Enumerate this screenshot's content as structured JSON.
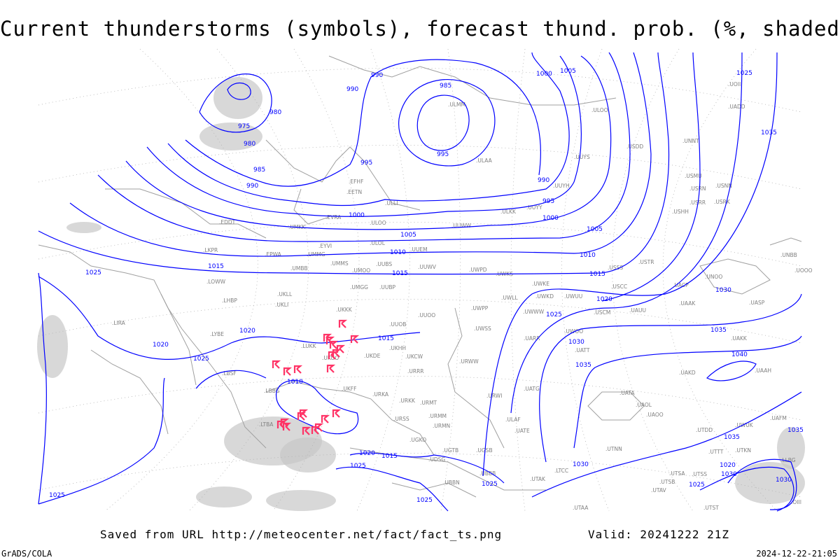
{
  "title": "Current thunderstorms (symbols), forecast thund. prob. (%, shaded)",
  "footer": {
    "saved": "Saved from URL http://meteocenter.net/fact/fact_ts.png",
    "valid": "Valid: 20241222 21Z",
    "software": "GrADS/COLA",
    "timestamp": "2024-12-22-21:05"
  },
  "colors": {
    "isobar": "#0000ff",
    "thunderstorm_symbol": "#ff3366",
    "probability_shading": "#c8c8c8",
    "coastline": "#a0a0a0"
  },
  "isobar_labels": [
    "975",
    "980",
    "980",
    "985",
    "990",
    "990",
    "995",
    "990",
    "985",
    "995",
    "1000",
    "1005",
    "990",
    "995",
    "1000",
    "1000",
    "1005",
    "1005",
    "1010",
    "1010",
    "1015",
    "1015",
    "1015",
    "1020",
    "1025",
    "1025",
    "1020",
    "1020",
    "1025",
    "1030",
    "1035",
    "1040",
    "1035",
    "1030",
    "1035",
    "1030",
    "1025",
    "1015",
    "1010",
    "1020",
    "1025",
    "1025",
    "1020",
    "1015",
    "1025",
    "1025",
    "1030",
    "1035",
    "1025",
    "1035",
    "1030"
  ],
  "stations": [
    "ULOO",
    "USDD",
    "UUYS",
    "UUYH",
    "UUYY",
    "ULAA",
    "ULMM",
    "EFHF",
    "EETN",
    "ULLI",
    "EVRA",
    "ULOO",
    "ULKK",
    "EDDT",
    "UMKK",
    "ULOL",
    "UUEM",
    "UUWW",
    "LKPR",
    "EPWA",
    "EYVI",
    "UMMG",
    "UMMS",
    "UMOO",
    "UUBS",
    "UUWV",
    "UMBB",
    "UWPD",
    "UWKS",
    "UWKE",
    "UWKD",
    "UWUU",
    "LOWW",
    "UKLL",
    "UMGG",
    "UUBP",
    "LHBP",
    "UKLI",
    "UKKK",
    "UUOO",
    "UWPP",
    "UWLL",
    "UWWW",
    "LIRA",
    "LYBE",
    "LUKK",
    "UKHH",
    "UKOO",
    "UUOB",
    "UWSS",
    "UKDE",
    "UKCW",
    "URRR",
    "URWW",
    "LBSF",
    "LBBG",
    "UKFF",
    "URKA",
    "URKK",
    "URMT",
    "URWI",
    "UATG",
    "LTBA",
    "URMM",
    "URMN",
    "URSS",
    "UGKO",
    "UGTB",
    "UDSG",
    "UBBB",
    "UBBN",
    "UTAK",
    "UGSB",
    "ULAF",
    "UATE",
    "UTAA",
    "UTNN",
    "UTSA",
    "UTSS",
    "UTSB",
    "UTAV",
    "UTST",
    "UTDD",
    "UTKN",
    "UTTT",
    "UAFM",
    "UAAH",
    "UAKD",
    "UATA",
    "UAOL",
    "UAOO",
    "UATT",
    "UARR",
    "UWOO",
    "USCM",
    "UAUU",
    "USCC",
    "USSS",
    "USTR",
    "UACP",
    "UAAK",
    "UASP",
    "UAKK",
    "UNOO",
    "USHH",
    "USRR",
    "USRN",
    "USNN",
    "USRK",
    "USMU",
    "UNNT",
    "UNBB",
    "UOOO",
    "UOII",
    "UADD",
    "UWUK",
    "LTCC",
    "LLBG",
    "OIII"
  ],
  "thunderstorm_symbol": "thunderstorm-icon"
}
